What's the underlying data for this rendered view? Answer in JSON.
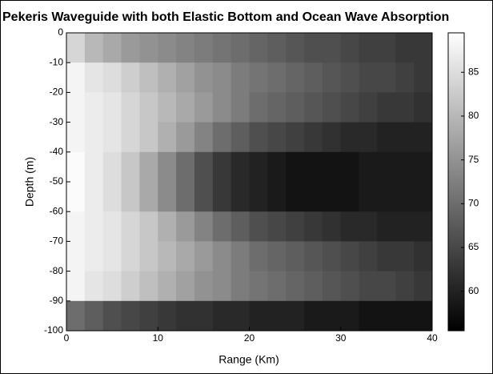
{
  "chart_data": {
    "type": "heatmap",
    "title": "Pekeris Waveguide with both Elastic Bottom and Ocean Wave Absorption",
    "x_label": "Range (Km)",
    "y_label": "Depth (m)",
    "x": [
      1,
      3,
      5,
      7,
      9,
      11,
      13,
      15,
      17,
      19,
      21,
      23,
      25,
      27,
      29,
      31,
      33,
      35,
      37,
      39
    ],
    "y": [
      -5,
      -15,
      -25,
      -35,
      -45,
      -55,
      -65,
      -75,
      -85,
      -95
    ],
    "z": [
      [
        84,
        80,
        78,
        76,
        75,
        74,
        73,
        72,
        71,
        70,
        69,
        68,
        67,
        66,
        66,
        65,
        64,
        64,
        63,
        63
      ],
      [
        88,
        86,
        85,
        83,
        81,
        79,
        77,
        75,
        74,
        72,
        71,
        70,
        69,
        68,
        67,
        66,
        65,
        65,
        64,
        63
      ],
      [
        88,
        87,
        86,
        84,
        82,
        80,
        78,
        76,
        74,
        72,
        70,
        69,
        68,
        67,
        66,
        65,
        64,
        63,
        63,
        62
      ],
      [
        88,
        87,
        86,
        84,
        82,
        79,
        76,
        73,
        70,
        68,
        66,
        65,
        64,
        63,
        62,
        61,
        61,
        60,
        60,
        60
      ],
      [
        89,
        87,
        85,
        82,
        78,
        74,
        70,
        66,
        63,
        61,
        60,
        59,
        58,
        58,
        58,
        58,
        59,
        59,
        59,
        59
      ],
      [
        89,
        87,
        85,
        82,
        78,
        74,
        70,
        66,
        63,
        61,
        60,
        59,
        58,
        58,
        58,
        58,
        59,
        59,
        59,
        59
      ],
      [
        88,
        87,
        86,
        84,
        82,
        79,
        76,
        73,
        70,
        68,
        66,
        65,
        64,
        63,
        62,
        61,
        61,
        60,
        60,
        60
      ],
      [
        88,
        87,
        86,
        84,
        82,
        80,
        78,
        76,
        74,
        72,
        70,
        69,
        68,
        67,
        66,
        65,
        64,
        63,
        63,
        62
      ],
      [
        88,
        86,
        85,
        83,
        81,
        79,
        77,
        75,
        74,
        72,
        71,
        70,
        69,
        68,
        67,
        66,
        65,
        65,
        64,
        63
      ],
      [
        70,
        68,
        66,
        65,
        64,
        63,
        62,
        62,
        61,
        61,
        60,
        60,
        60,
        59,
        59,
        59,
        58,
        58,
        58,
        58
      ]
    ],
    "xlim": [
      0,
      40
    ],
    "xticks": [
      0,
      10,
      20,
      30,
      40
    ],
    "ylim": [
      -100,
      0
    ],
    "yticks": [
      0,
      -10,
      -20,
      -30,
      -40,
      -50,
      -60,
      -70,
      -80,
      -90,
      -100
    ],
    "colormap": "gray",
    "clim": [
      55.5,
      89.5
    ],
    "cticks": [
      60,
      65,
      70,
      75,
      80,
      85
    ]
  }
}
